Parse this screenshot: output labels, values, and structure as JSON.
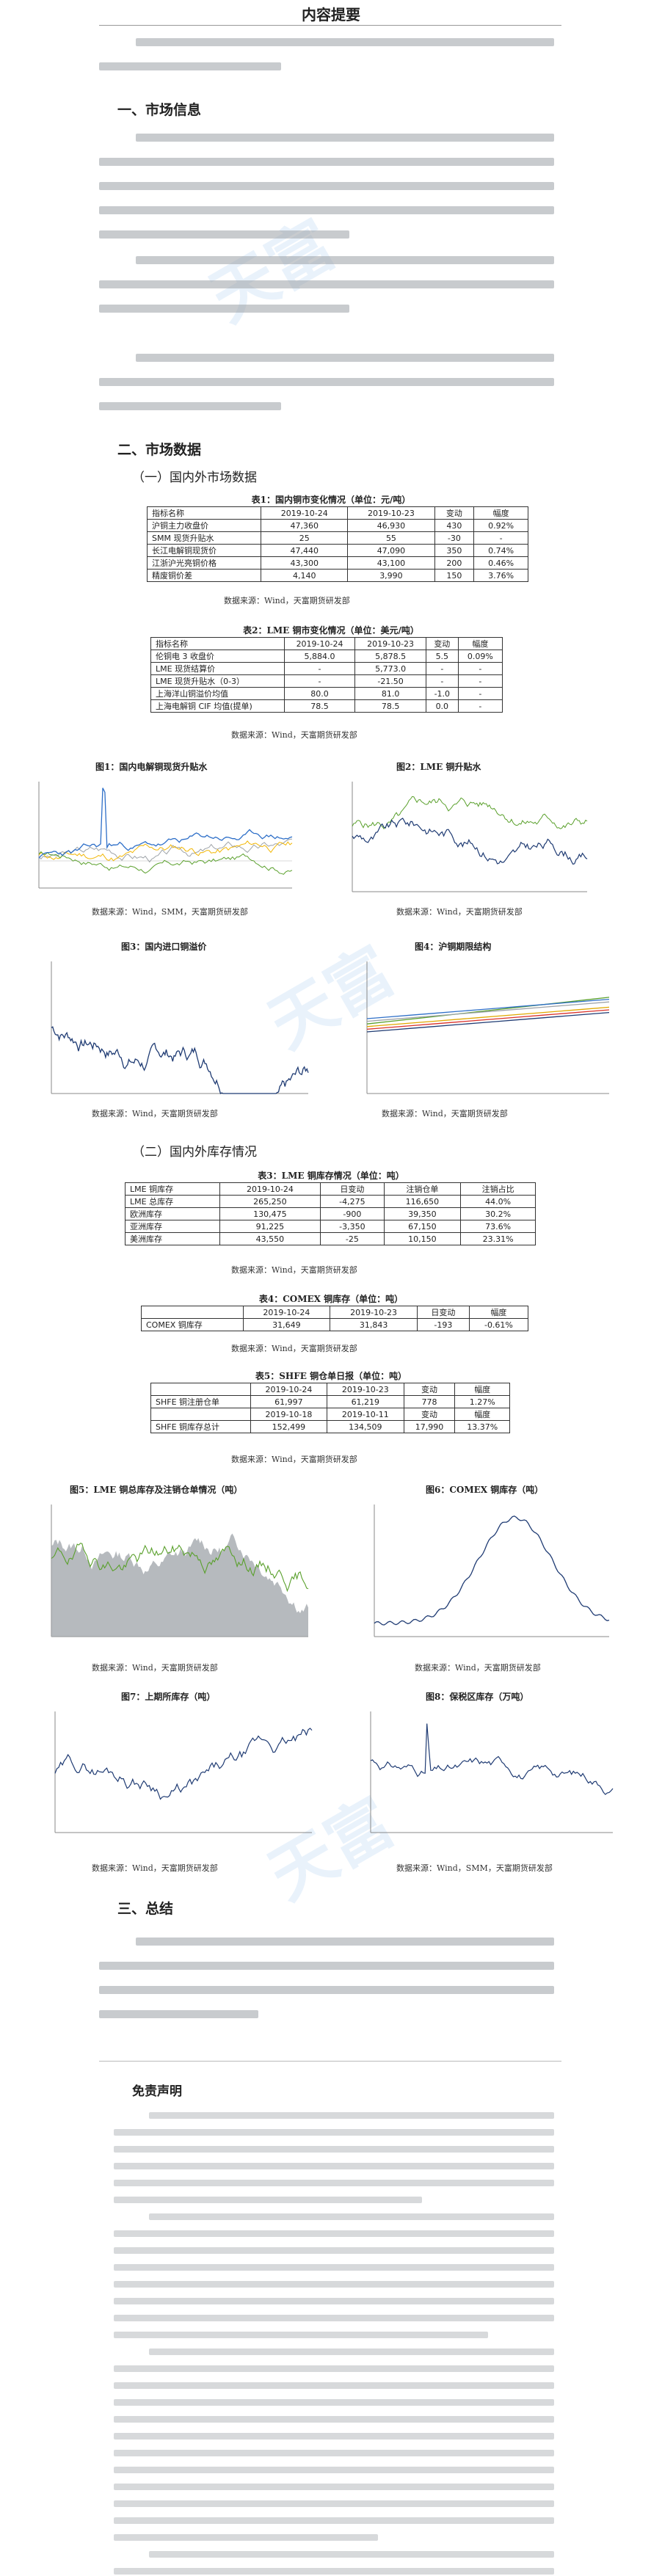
{
  "doc": {
    "title": "内容提要"
  },
  "sections": {
    "s1": "一、市场信息",
    "s2": "二、市场数据",
    "s2_sub1": "（一）国内外市场数据",
    "s2_sub2": "（二）国内外库存情况",
    "s3": "三、总结"
  },
  "source_line": "数据来源：Wind，天富期货研发部",
  "source_line_smm": "数据来源：Wind，SMM，天富期货研发部",
  "table1": {
    "caption": "表1：国内铜市变化情况（单位：元/吨）",
    "header": [
      "指标名称",
      "2019-10-24",
      "2019-10-23",
      "变动",
      "幅度"
    ],
    "rows": [
      [
        "沪铜主力收盘价",
        "47,360",
        "46,930",
        "430",
        "0.92%"
      ],
      [
        "SMM 现货升贴水",
        "25",
        "55",
        "-30",
        "-"
      ],
      [
        "长江电解铜现货价",
        "47,440",
        "47,090",
        "350",
        "0.74%"
      ],
      [
        "江浙沪光亮铜价格",
        "43,300",
        "43,100",
        "200",
        "0.46%"
      ],
      [
        "精废铜价差",
        "4,140",
        "3,990",
        "150",
        "3.76%"
      ]
    ]
  },
  "table2": {
    "caption": "表2：LME 铜市变化情况（单位：美元/吨）",
    "header": [
      "指标名称",
      "2019-10-24",
      "2019-10-23",
      "变动",
      "幅度"
    ],
    "rows": [
      [
        "伦铜电 3 收盘价",
        "5,884.0",
        "5,878.5",
        "5.5",
        "0.09%"
      ],
      [
        "LME 现货结算价",
        "-",
        "5,773.0",
        "-",
        "-"
      ],
      [
        "LME 现货升贴水（0-3）",
        "-",
        "-21.50",
        "-",
        "-"
      ],
      [
        "上海洋山铜溢价均值",
        "80.0",
        "81.0",
        "-1.0",
        "-"
      ],
      [
        "上海电解铜 CIF 均值(提单)",
        "78.5",
        "78.5",
        "0.0",
        "-"
      ]
    ]
  },
  "figures": {
    "fig1": "图1：国内电解铜现货升贴水",
    "fig2": "图2：LME 铜升贴水",
    "fig3": "图3：国内进口铜溢价",
    "fig4": "图4：沪铜期限结构",
    "fig5": "图5：LME 铜总库存及注销仓单情况（吨）",
    "fig6": "图6：COMEX 铜库存（吨）",
    "fig7": "图7：上期所库存（吨）",
    "fig8": "图8：保税区库存（万吨）"
  },
  "table3": {
    "caption": "表3：LME 铜库存情况（单位：吨）",
    "header": [
      "LME 铜库存",
      "2019-10-24",
      "日变动",
      "注销仓单",
      "注销占比"
    ],
    "rows": [
      [
        "LME 总库存",
        "265,250",
        "-4,275",
        "116,650",
        "44.0%"
      ],
      [
        "欧洲库存",
        "130,475",
        "-900",
        "39,350",
        "30.2%"
      ],
      [
        "亚洲库存",
        "91,225",
        "-3,350",
        "67,150",
        "73.6%"
      ],
      [
        "美洲库存",
        "43,550",
        "-25",
        "10,150",
        "23.31%"
      ]
    ]
  },
  "table4": {
    "caption": "表4：COMEX 铜库存（单位：吨）",
    "header": [
      "",
      "2019-10-24",
      "2019-10-23",
      "日变动",
      "幅度"
    ],
    "rows": [
      [
        "COMEX 铜库存",
        "31,649",
        "31,843",
        "-193",
        "-0.61%"
      ]
    ]
  },
  "table5": {
    "caption": "表5：SHFE 铜仓单日报（单位：吨）",
    "header1": [
      "",
      "2019-10-24",
      "2019-10-23",
      "变动",
      "幅度"
    ],
    "row1": [
      "SHFE 铜注册仓单",
      "61,997",
      "61,219",
      "778",
      "1.27%"
    ],
    "header2": [
      "",
      "2019-10-18",
      "2019-10-11",
      "变动",
      "幅度"
    ],
    "row2": [
      "SHFE 铜库存总计",
      "152,499",
      "134,509",
      "17,990",
      "13.37%"
    ]
  },
  "disclaimer_title": "免责声明",
  "colors": {
    "navy": "#1f3b73",
    "green": "#5aa02c",
    "gray": "#9ea3a8",
    "yellow": "#f2b705",
    "blue": "#2e6fc8",
    "red": "#d9312b",
    "gold": "#e0a800"
  }
}
